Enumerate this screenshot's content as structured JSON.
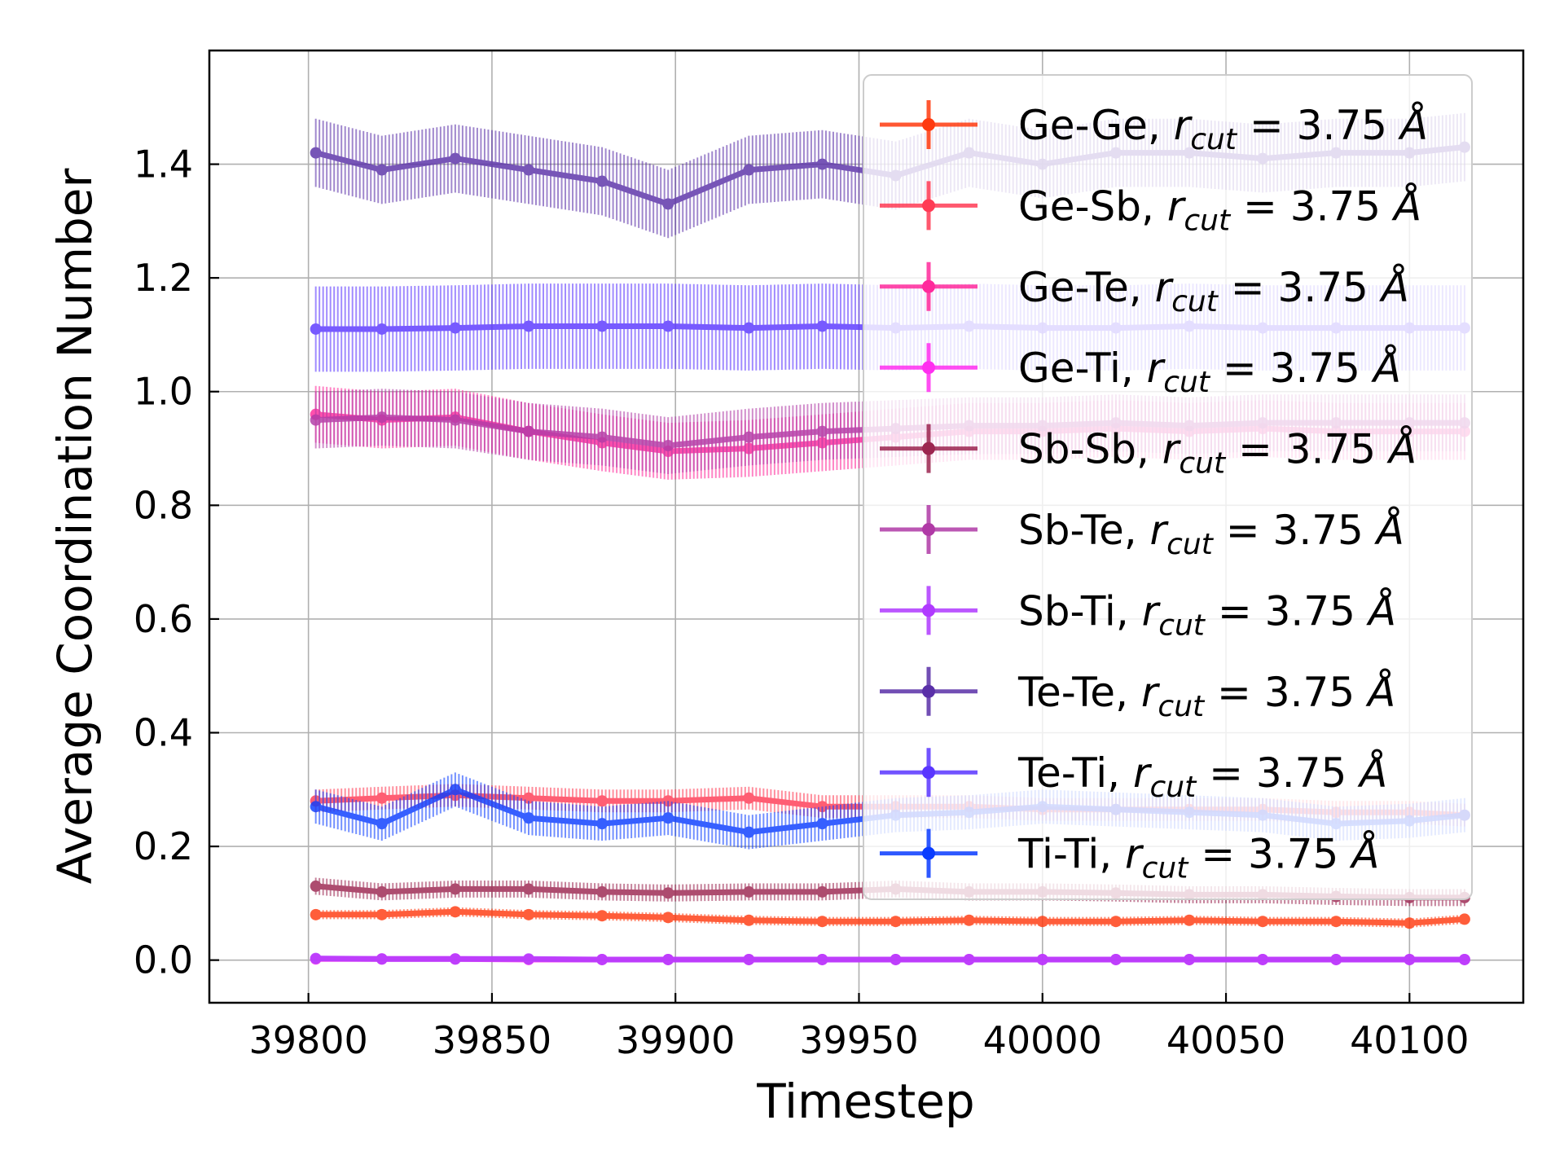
{
  "chart_data": {
    "type": "line",
    "xlabel": "Timestep",
    "ylabel": "Average Coordination Number",
    "xlim": [
      39773,
      40131
    ],
    "ylim": [
      -0.075,
      1.6
    ],
    "xticks": [
      39800,
      39850,
      39900,
      39950,
      40000,
      40050,
      40100
    ],
    "xtick_labels": [
      "39800",
      "39850",
      "39900",
      "39950",
      "40000",
      "40050",
      "40100"
    ],
    "yticks": [
      0.0,
      0.2,
      0.4,
      0.6,
      0.8,
      1.0,
      1.2,
      1.4
    ],
    "ytick_labels": [
      "0.0",
      "0.2",
      "0.4",
      "0.6",
      "0.8",
      "1.0",
      "1.2",
      "1.4"
    ],
    "grid": true,
    "error_bars": true,
    "legend_position": "upper right",
    "legend_symbols": {
      "r": "r",
      "cut": "cut",
      "equals_value": " = 3.75 ",
      "unit": "Å"
    },
    "x": [
      39802,
      39820,
      39840,
      39860,
      39880,
      39898,
      39920,
      39940,
      39960,
      39980,
      40000,
      40020,
      40040,
      40060,
      40080,
      40100,
      40115
    ],
    "series": [
      {
        "name": "Ge-Ge",
        "color": "#ff3a0f",
        "values": [
          0.08,
          0.08,
          0.085,
          0.08,
          0.078,
          0.075,
          0.07,
          0.068,
          0.068,
          0.07,
          0.068,
          0.068,
          0.07,
          0.068,
          0.068,
          0.065,
          0.072
        ],
        "errors": [
          0.008,
          0.008,
          0.008,
          0.008,
          0.008,
          0.008,
          0.008,
          0.008,
          0.008,
          0.008,
          0.008,
          0.008,
          0.008,
          0.008,
          0.008,
          0.008,
          0.008
        ]
      },
      {
        "name": "Ge-Sb",
        "color": "#ff3b55",
        "values": [
          0.28,
          0.285,
          0.29,
          0.285,
          0.28,
          0.28,
          0.285,
          0.27,
          0.27,
          0.27,
          0.265,
          0.265,
          0.265,
          0.265,
          0.26,
          0.26,
          0.255
        ],
        "errors": [
          0.02,
          0.02,
          0.02,
          0.02,
          0.02,
          0.02,
          0.02,
          0.02,
          0.02,
          0.02,
          0.02,
          0.02,
          0.02,
          0.02,
          0.02,
          0.02,
          0.02
        ]
      },
      {
        "name": "Ge-Te",
        "color": "#ff2a9c",
        "values": [
          0.96,
          0.95,
          0.955,
          0.93,
          0.91,
          0.895,
          0.9,
          0.91,
          0.92,
          0.93,
          0.93,
          0.935,
          0.93,
          0.935,
          0.93,
          0.93,
          0.93
        ],
        "errors": [
          0.05,
          0.05,
          0.05,
          0.05,
          0.05,
          0.05,
          0.05,
          0.05,
          0.05,
          0.05,
          0.05,
          0.05,
          0.05,
          0.05,
          0.05,
          0.05,
          0.05
        ]
      },
      {
        "name": "Ge-Ti",
        "color": "#ff2ff0",
        "values": [
          0.002,
          0.002,
          0.002,
          0.001,
          0.001,
          0.001,
          0.001,
          0.001,
          0.001,
          0.001,
          0.001,
          0.001,
          0.001,
          0.001,
          0.001,
          0.001,
          0.001
        ],
        "errors": [
          0.003,
          0.003,
          0.003,
          0.003,
          0.003,
          0.003,
          0.003,
          0.003,
          0.003,
          0.003,
          0.003,
          0.003,
          0.003,
          0.003,
          0.003,
          0.003,
          0.003
        ]
      },
      {
        "name": "Sb-Sb",
        "color": "#9c2550",
        "values": [
          0.13,
          0.12,
          0.125,
          0.125,
          0.12,
          0.118,
          0.12,
          0.12,
          0.125,
          0.12,
          0.12,
          0.118,
          0.115,
          0.115,
          0.112,
          0.11,
          0.11
        ],
        "errors": [
          0.015,
          0.015,
          0.015,
          0.015,
          0.015,
          0.015,
          0.015,
          0.015,
          0.015,
          0.015,
          0.015,
          0.015,
          0.015,
          0.015,
          0.015,
          0.015,
          0.015
        ]
      },
      {
        "name": "Sb-Te",
        "color": "#b03aa6",
        "values": [
          0.95,
          0.955,
          0.95,
          0.93,
          0.92,
          0.905,
          0.92,
          0.93,
          0.935,
          0.94,
          0.94,
          0.945,
          0.94,
          0.945,
          0.945,
          0.945,
          0.945
        ],
        "errors": [
          0.05,
          0.05,
          0.05,
          0.05,
          0.05,
          0.05,
          0.05,
          0.05,
          0.05,
          0.05,
          0.05,
          0.05,
          0.05,
          0.05,
          0.05,
          0.05,
          0.05
        ]
      },
      {
        "name": "Sb-Ti",
        "color": "#b03aff",
        "values": [
          0.003,
          0.002,
          0.002,
          0.002,
          0.001,
          0.001,
          0.001,
          0.001,
          0.001,
          0.001,
          0.001,
          0.001,
          0.001,
          0.001,
          0.001,
          0.001,
          0.001
        ],
        "errors": [
          0.004,
          0.004,
          0.004,
          0.004,
          0.004,
          0.004,
          0.004,
          0.004,
          0.004,
          0.004,
          0.004,
          0.004,
          0.004,
          0.004,
          0.004,
          0.004,
          0.004
        ]
      },
      {
        "name": "Te-Te",
        "color": "#5a30a8",
        "values": [
          1.42,
          1.39,
          1.41,
          1.39,
          1.37,
          1.33,
          1.39,
          1.4,
          1.38,
          1.42,
          1.4,
          1.42,
          1.42,
          1.41,
          1.42,
          1.42,
          1.43
        ],
        "errors": [
          0.06,
          0.06,
          0.06,
          0.06,
          0.06,
          0.06,
          0.06,
          0.06,
          0.06,
          0.06,
          0.06,
          0.06,
          0.06,
          0.06,
          0.06,
          0.06,
          0.06
        ]
      },
      {
        "name": "Te-Ti",
        "color": "#5a36ff",
        "values": [
          1.11,
          1.11,
          1.112,
          1.115,
          1.115,
          1.115,
          1.112,
          1.115,
          1.112,
          1.115,
          1.112,
          1.112,
          1.115,
          1.112,
          1.112,
          1.112,
          1.112
        ],
        "errors": [
          0.075,
          0.075,
          0.075,
          0.075,
          0.075,
          0.075,
          0.075,
          0.075,
          0.075,
          0.075,
          0.075,
          0.075,
          0.075,
          0.075,
          0.075,
          0.075,
          0.075
        ]
      },
      {
        "name": "Ti-Ti",
        "color": "#0a3cff",
        "values": [
          0.27,
          0.24,
          0.3,
          0.25,
          0.24,
          0.25,
          0.225,
          0.24,
          0.255,
          0.26,
          0.27,
          0.265,
          0.26,
          0.255,
          0.24,
          0.245,
          0.255
        ],
        "errors": [
          0.03,
          0.03,
          0.03,
          0.03,
          0.03,
          0.03,
          0.03,
          0.03,
          0.03,
          0.03,
          0.03,
          0.03,
          0.03,
          0.03,
          0.03,
          0.03,
          0.03
        ]
      }
    ]
  }
}
